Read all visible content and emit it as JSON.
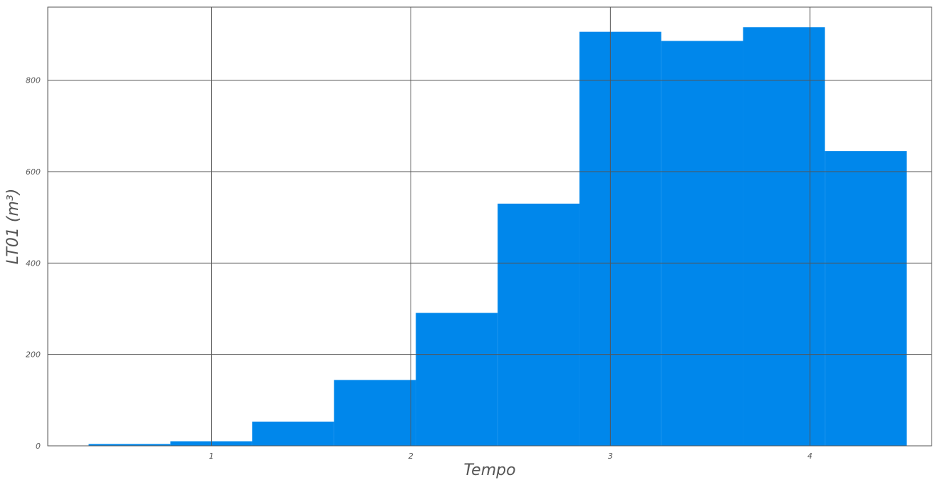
{
  "chart_data": {
    "type": "bar",
    "title": "",
    "xlabel": "Tempo",
    "ylabel": "LT01 (m³)",
    "bar_color": "#0087eb",
    "grid_color": "#555555",
    "grid": true,
    "xlim": [
      0.18,
      4.61
    ],
    "ylim": [
      0,
      960
    ],
    "xticks": [
      1,
      2,
      3,
      4
    ],
    "xtick_labels": [
      "1",
      "2",
      "3",
      "4"
    ],
    "yticks": [
      0,
      200,
      400,
      600,
      800
    ],
    "ytick_labels": [
      "0",
      "200",
      "400",
      "600",
      "800"
    ],
    "bins": [
      {
        "x0": 0.385,
        "x1": 0.795,
        "value": 4
      },
      {
        "x0": 0.795,
        "x1": 1.205,
        "value": 10
      },
      {
        "x0": 1.205,
        "x1": 1.615,
        "value": 53
      },
      {
        "x0": 1.615,
        "x1": 2.025,
        "value": 144
      },
      {
        "x0": 2.025,
        "x1": 2.435,
        "value": 291
      },
      {
        "x0": 2.435,
        "x1": 2.845,
        "value": 530
      },
      {
        "x0": 2.845,
        "x1": 3.255,
        "value": 906
      },
      {
        "x0": 3.255,
        "x1": 3.665,
        "value": 886
      },
      {
        "x0": 3.665,
        "x1": 4.075,
        "value": 916
      },
      {
        "x0": 4.075,
        "x1": 4.485,
        "value": 645
      }
    ]
  }
}
